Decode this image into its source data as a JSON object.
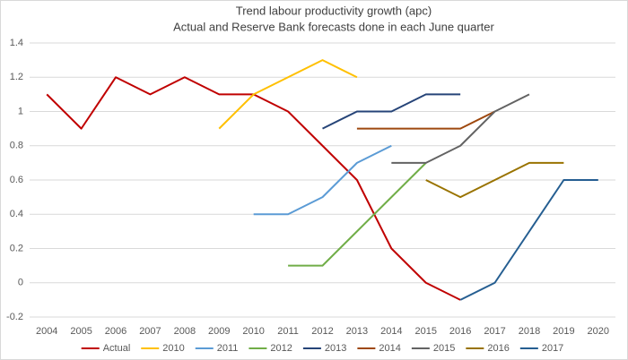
{
  "chart_data": {
    "type": "line",
    "title": "Trend labour productivity growth (apc)",
    "subtitle": "Actual and Reserve Bank forecasts done in each June quarter",
    "categories": [
      "2004",
      "2005",
      "2006",
      "2007",
      "2008",
      "2009",
      "2010",
      "2011",
      "2012",
      "2013",
      "2014",
      "2015",
      "2016",
      "2017",
      "2018",
      "2019",
      "2020"
    ],
    "ylim": [
      -0.2,
      1.4
    ],
    "yticks": [
      -0.2,
      0,
      0.2,
      0.4,
      0.6,
      0.8,
      1,
      1.2,
      1.4
    ],
    "grid": true,
    "legend": "bottom",
    "series": [
      {
        "name": "Actual",
        "color": "#c00000",
        "values": [
          1.1,
          0.9,
          1.2,
          1.1,
          1.2,
          1.1,
          1.1,
          1.0,
          0.8,
          0.6,
          0.2,
          0.0,
          -0.1,
          null,
          null,
          null,
          null
        ]
      },
      {
        "name": "2010",
        "color": "#ffc000",
        "values": [
          null,
          null,
          null,
          null,
          null,
          0.9,
          1.1,
          1.2,
          1.3,
          1.2,
          null,
          null,
          null,
          null,
          null,
          null,
          null
        ]
      },
      {
        "name": "2011",
        "color": "#5b9bd5",
        "values": [
          null,
          null,
          null,
          null,
          null,
          null,
          0.4,
          0.4,
          0.5,
          0.7,
          0.8,
          null,
          null,
          null,
          null,
          null,
          null
        ]
      },
      {
        "name": "2012",
        "color": "#70ad47",
        "values": [
          null,
          null,
          null,
          null,
          null,
          null,
          null,
          0.1,
          0.1,
          0.3,
          0.5,
          0.7,
          null,
          null,
          null,
          null,
          null
        ]
      },
      {
        "name": "2013",
        "color": "#264478",
        "values": [
          null,
          null,
          null,
          null,
          null,
          null,
          null,
          null,
          0.9,
          1.0,
          1.0,
          1.1,
          1.1,
          null,
          null,
          null,
          null
        ]
      },
      {
        "name": "2014",
        "color": "#9e480e",
        "values": [
          null,
          null,
          null,
          null,
          null,
          null,
          null,
          null,
          null,
          0.9,
          0.9,
          0.9,
          0.9,
          1.0,
          null,
          null,
          null
        ]
      },
      {
        "name": "2015",
        "color": "#636363",
        "values": [
          null,
          null,
          null,
          null,
          null,
          null,
          null,
          null,
          null,
          null,
          0.7,
          0.7,
          0.8,
          1.0,
          1.1,
          null,
          null
        ]
      },
      {
        "name": "2016",
        "color": "#997300",
        "values": [
          null,
          null,
          null,
          null,
          null,
          null,
          null,
          null,
          null,
          null,
          null,
          0.6,
          0.5,
          0.6,
          0.7,
          0.7,
          null
        ]
      },
      {
        "name": "2017",
        "color": "#255e91",
        "values": [
          null,
          null,
          null,
          null,
          null,
          null,
          null,
          null,
          null,
          null,
          null,
          null,
          -0.1,
          0.0,
          0.3,
          0.6,
          0.6
        ]
      }
    ]
  }
}
